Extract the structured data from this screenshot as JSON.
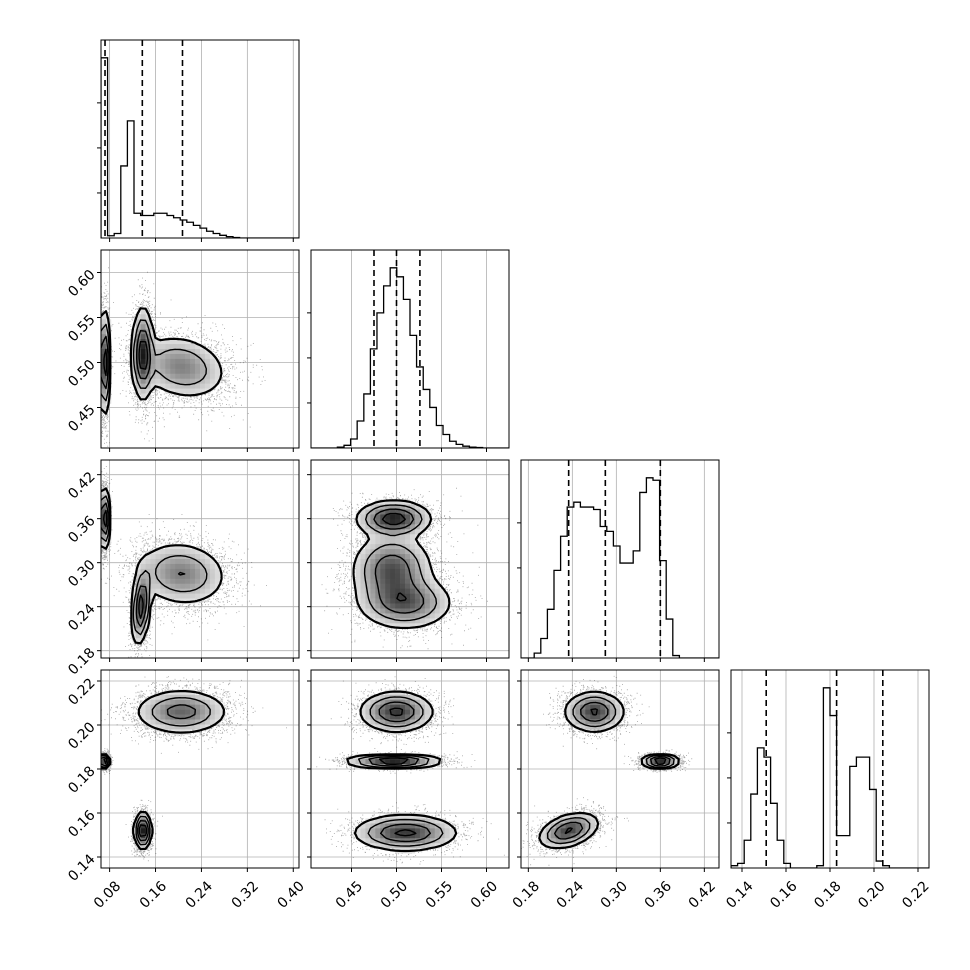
{
  "chart_data": {
    "type": "corner",
    "parameters": [
      {
        "id": "p1",
        "range": [
          0.065,
          0.41
        ],
        "ticks": [
          0.08,
          0.16,
          0.24,
          0.32,
          0.4
        ],
        "tick_labels": [
          "0.08",
          "0.16",
          "0.24",
          "0.32",
          "0.40"
        ],
        "quantiles": [
          0.072,
          0.137,
          0.207
        ],
        "histogram": {
          "bin_edges": [
            0.065,
            0.0765,
            0.088,
            0.0995,
            0.111,
            0.1225,
            0.134,
            0.1455,
            0.157,
            0.1685,
            0.18,
            0.1915,
            0.203,
            0.2145,
            0.226,
            0.2375,
            0.249,
            0.2605,
            0.272,
            0.2835,
            0.295,
            0.3065,
            0.318,
            0.3295,
            0.341,
            0.3525,
            0.364,
            0.3755,
            0.387,
            0.3985,
            0.41
          ],
          "counts": [
            4.0,
            0.05,
            0.1,
            1.6,
            2.6,
            0.55,
            0.5,
            0.5,
            0.55,
            0.55,
            0.5,
            0.45,
            0.4,
            0.35,
            0.28,
            0.22,
            0.15,
            0.1,
            0.06,
            0.03,
            0.01,
            0,
            0,
            0,
            0,
            0,
            0,
            0,
            0,
            0
          ]
        }
      },
      {
        "id": "p2",
        "range": [
          0.405,
          0.625
        ],
        "ticks": [
          0.45,
          0.5,
          0.55,
          0.6
        ],
        "tick_labels": [
          "0.45",
          "0.50",
          "0.55",
          "0.60"
        ],
        "quantiles": [
          0.475,
          0.5,
          0.526
        ],
        "histogram": {
          "bin_edges": [
            0.405,
            0.4123,
            0.4197,
            0.427,
            0.4343,
            0.4417,
            0.449,
            0.4563,
            0.4637,
            0.471,
            0.4783,
            0.4857,
            0.493,
            0.5003,
            0.5077,
            0.515,
            0.5223,
            0.5297,
            0.537,
            0.5443,
            0.5517,
            0.559,
            0.5663,
            0.5737,
            0.581,
            0.5883,
            0.5957,
            0.603,
            0.6103,
            0.6177,
            0.625
          ],
          "counts": [
            0,
            0,
            0,
            0,
            0.02,
            0.06,
            0.2,
            0.6,
            1.2,
            2.2,
            3.0,
            3.6,
            4.0,
            3.8,
            3.3,
            2.5,
            1.8,
            1.3,
            0.9,
            0.5,
            0.3,
            0.15,
            0.08,
            0.04,
            0.02,
            0.01,
            0,
            0,
            0,
            0
          ]
        }
      },
      {
        "id": "p3",
        "range": [
          0.17,
          0.44
        ],
        "ticks": [
          0.18,
          0.24,
          0.3,
          0.36,
          0.42
        ],
        "tick_labels": [
          "0.18",
          "0.24",
          "0.30",
          "0.36",
          "0.42"
        ],
        "quantiles": [
          0.235,
          0.285,
          0.36
        ],
        "histogram": {
          "bin_edges": [
            0.17,
            0.179,
            0.188,
            0.197,
            0.206,
            0.215,
            0.224,
            0.233,
            0.242,
            0.251,
            0.26,
            0.269,
            0.278,
            0.287,
            0.296,
            0.305,
            0.314,
            0.323,
            0.332,
            0.341,
            0.35,
            0.359,
            0.368,
            0.377,
            0.386,
            0.395,
            0.404,
            0.413,
            0.422,
            0.431,
            0.44
          ],
          "counts": [
            0,
            0,
            0.1,
            0.4,
            1.0,
            1.8,
            2.5,
            3.1,
            3.2,
            3.1,
            3.1,
            3.05,
            2.7,
            2.6,
            2.3,
            1.95,
            1.95,
            2.2,
            3.4,
            3.7,
            3.65,
            2.0,
            0.8,
            0.05,
            0,
            0,
            0,
            0,
            0,
            0
          ]
        }
      },
      {
        "id": "p4",
        "range": [
          0.135,
          0.225
        ],
        "ticks": [
          0.14,
          0.16,
          0.18,
          0.2,
          0.22
        ],
        "tick_labels": [
          "0.14",
          "0.16",
          "0.18",
          "0.20",
          "0.22"
        ],
        "quantiles": [
          0.151,
          0.183,
          0.204
        ],
        "histogram": {
          "bin_edges": [
            0.135,
            0.138,
            0.141,
            0.144,
            0.147,
            0.15,
            0.153,
            0.156,
            0.159,
            0.162,
            0.165,
            0.168,
            0.171,
            0.174,
            0.177,
            0.18,
            0.183,
            0.186,
            0.189,
            0.192,
            0.195,
            0.198,
            0.201,
            0.204,
            0.207,
            0.21,
            0.213,
            0.216,
            0.219,
            0.222,
            0.225
          ],
          "counts": [
            0.05,
            0.1,
            0.6,
            1.6,
            2.6,
            2.4,
            1.4,
            0.6,
            0.1,
            0,
            0,
            0,
            0,
            0.05,
            3.9,
            3.3,
            0.7,
            0.7,
            2.2,
            2.4,
            2.4,
            1.7,
            0.15,
            0.05,
            0,
            0,
            0,
            0,
            0,
            0
          ]
        }
      }
    ],
    "pair_modes": {
      "1-0": [
        {
          "x": 0.07,
          "y": 0.5,
          "sx": 0.004,
          "sy": 0.028,
          "rho": 0.0,
          "w": 1.3,
          "n": 2400
        },
        {
          "x": 0.138,
          "y": 0.51,
          "sx": 0.009,
          "sy": 0.025,
          "rho": 0.0,
          "w": 0.9,
          "n": 2200
        },
        {
          "x": 0.205,
          "y": 0.495,
          "sx": 0.04,
          "sy": 0.018,
          "rho": -0.2,
          "w": 0.5,
          "n": 3200
        }
      ],
      "2-0": [
        {
          "x": 0.07,
          "y": 0.36,
          "sx": 0.004,
          "sy": 0.02,
          "rho": 0.0,
          "w": 1.3,
          "n": 2400
        },
        {
          "x": 0.135,
          "y": 0.24,
          "sx": 0.008,
          "sy": 0.025,
          "rho": 0.3,
          "w": 0.9,
          "n": 2000
        },
        {
          "x": 0.205,
          "y": 0.285,
          "sx": 0.04,
          "sy": 0.022,
          "rho": -0.1,
          "w": 0.5,
          "n": 3200
        }
      ],
      "2-1": [
        {
          "x": 0.497,
          "y": 0.36,
          "sx": 0.02,
          "sy": 0.012,
          "rho": 0.0,
          "w": 1.3,
          "n": 2200
        },
        {
          "x": 0.495,
          "y": 0.29,
          "sx": 0.022,
          "sy": 0.025,
          "rho": 0.0,
          "w": 1.0,
          "n": 2600
        },
        {
          "x": 0.51,
          "y": 0.245,
          "sx": 0.026,
          "sy": 0.018,
          "rho": 0.0,
          "w": 0.9,
          "n": 2200
        }
      ],
      "3-0": [
        {
          "x": 0.07,
          "y": 0.1835,
          "sx": 0.004,
          "sy": 0.0015,
          "rho": 0.0,
          "w": 1.3,
          "n": 2400
        },
        {
          "x": 0.138,
          "y": 0.152,
          "sx": 0.007,
          "sy": 0.004,
          "rho": 0.0,
          "w": 0.9,
          "n": 2200
        },
        {
          "x": 0.205,
          "y": 0.206,
          "sx": 0.04,
          "sy": 0.005,
          "rho": 0.0,
          "w": 0.5,
          "n": 3200
        }
      ],
      "3-1": [
        {
          "x": 0.5,
          "y": 0.206,
          "sx": 0.02,
          "sy": 0.0045,
          "rho": 0.0,
          "w": 0.9,
          "n": 2300
        },
        {
          "x": 0.497,
          "y": 0.1835,
          "sx": 0.025,
          "sy": 0.0014,
          "rho": 0.0,
          "w": 1.3,
          "n": 2300
        },
        {
          "x": 0.51,
          "y": 0.151,
          "sx": 0.028,
          "sy": 0.004,
          "rho": 0.0,
          "w": 0.9,
          "n": 2300
        }
      ],
      "3-2": [
        {
          "x": 0.27,
          "y": 0.206,
          "sx": 0.02,
          "sy": 0.0045,
          "rho": 0.0,
          "w": 0.9,
          "n": 2300
        },
        {
          "x": 0.36,
          "y": 0.1835,
          "sx": 0.012,
          "sy": 0.0015,
          "rho": 0.0,
          "w": 1.3,
          "n": 2300
        },
        {
          "x": 0.235,
          "y": 0.152,
          "sx": 0.02,
          "sy": 0.004,
          "rho": 0.4,
          "w": 0.9,
          "n": 2300
        }
      ]
    },
    "contour_levels": [
      0.12,
      0.3,
      0.55,
      0.82
    ],
    "colors": {
      "scatter": "#000000",
      "contour": "#000000",
      "grid": "#b0b0b0",
      "axis": "#000000"
    }
  }
}
